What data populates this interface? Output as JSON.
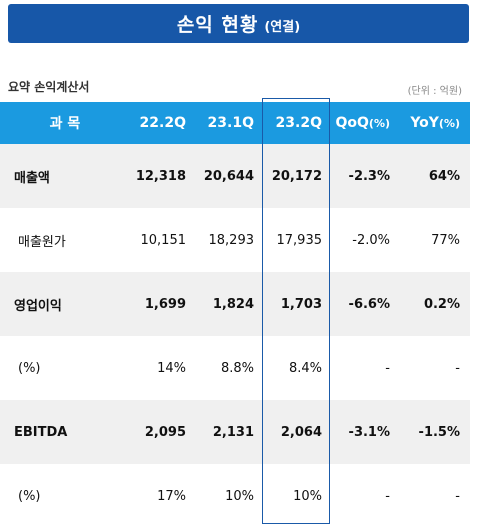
{
  "title": {
    "main": "손익 현황",
    "sub": "(연결)"
  },
  "caption": "요약 손익계산서",
  "unit": "(단위 : 억원)",
  "table": {
    "headers": [
      "과 목",
      "22.2Q",
      "23.1Q",
      "23.2Q",
      "QoQ",
      "(%)",
      "YoY",
      "(%)"
    ],
    "rows": [
      {
        "label": "매출액",
        "v1": "12,318",
        "v2": "20,644",
        "v3": "20,172",
        "qoq": "-2.3%",
        "yoy": "64%"
      },
      {
        "label": "매출원가",
        "v1": "10,151",
        "v2": "18,293",
        "v3": "17,935",
        "qoq": "-2.0%",
        "yoy": "77%"
      },
      {
        "label": "영업이익",
        "v1": "1,699",
        "v2": "1,824",
        "v3": "1,703",
        "qoq": "-6.6%",
        "yoy": "0.2%"
      },
      {
        "label": "(%)",
        "v1": "14%",
        "v2": "8.8%",
        "v3": "8.4%",
        "qoq": "-",
        "yoy": "-"
      },
      {
        "label": "EBITDA",
        "v1": "2,095",
        "v2": "2,131",
        "v3": "2,064",
        "qoq": "-3.1%",
        "yoy": "-1.5%"
      },
      {
        "label": "(%)",
        "v1": "17%",
        "v2": "10%",
        "v3": "10%",
        "qoq": "-",
        "yoy": "-"
      }
    ]
  },
  "colors": {
    "title_bg": "#1757a8",
    "header_bg": "#1b9ae0",
    "highlight_border": "#1a5aa8",
    "shade": "#f0f0f0"
  }
}
